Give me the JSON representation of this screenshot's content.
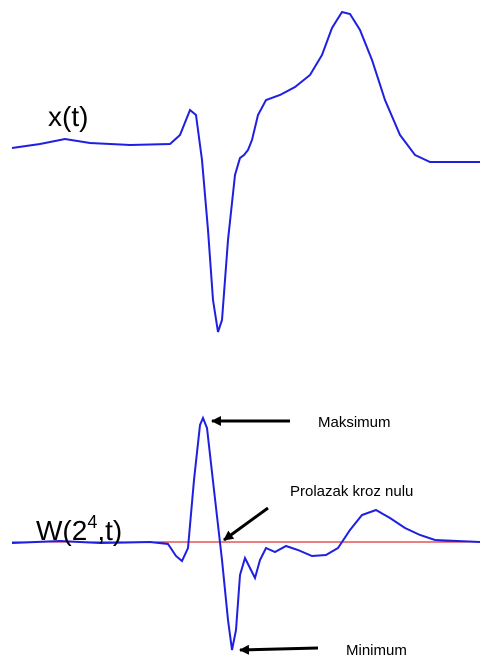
{
  "signal_label": "x(t)",
  "transform_label": {
    "base": "W(2",
    "superscript": "4",
    "tail": ",t)"
  },
  "annotations": {
    "maximum": "Maksimum",
    "zero_crossing": "Prolazak kroz nulu",
    "minimum": "Minimum"
  }
}
